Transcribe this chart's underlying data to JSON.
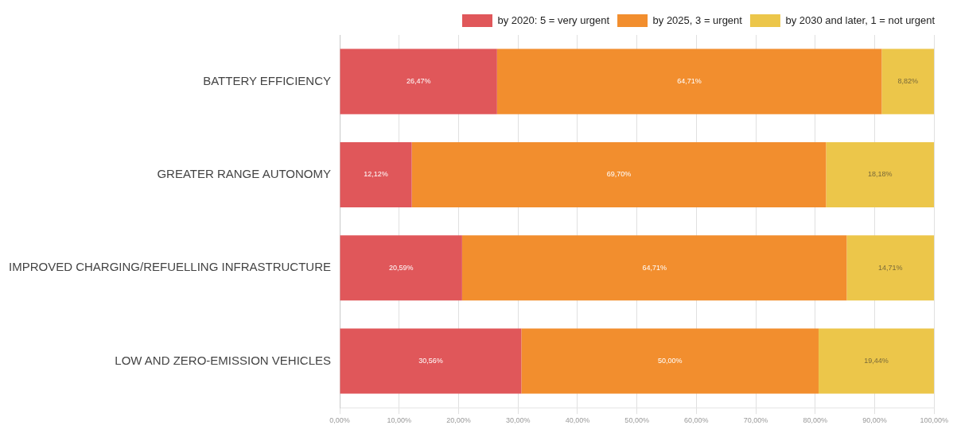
{
  "chart_data": {
    "type": "bar",
    "orientation": "horizontal",
    "stacked": true,
    "categories": [
      "BATTERY EFFICIENCY",
      "GREATER RANGE AUTONOMY",
      "IMPROVED CHARGING/REFUELLING INFRASTRUCTURE",
      "LOW AND ZERO-EMISSION VEHICLES"
    ],
    "series": [
      {
        "name": "by 2020: 5 = very urgent",
        "color": "#e0575a",
        "values": [
          26.47,
          12.12,
          20.59,
          30.56
        ],
        "value_labels": [
          "26,47%",
          "12,12%",
          "20,59%",
          "30,56%"
        ]
      },
      {
        "name": "by 2025, 3 = urgent",
        "color": "#f28e2e",
        "values": [
          64.71,
          69.7,
          64.71,
          50.0
        ],
        "value_labels": [
          "64,71%",
          "69,70%",
          "64,71%",
          "50,00%"
        ]
      },
      {
        "name": "by 2030 and later, 1 = not urgent",
        "color": "#ecc64a",
        "values": [
          8.82,
          18.18,
          14.71,
          19.44
        ],
        "value_labels": [
          "8,82%",
          "18,18%",
          "14,71%",
          "19,44%"
        ]
      }
    ],
    "xlim": [
      0,
      100
    ],
    "xticks": [
      {
        "value": 0,
        "label": "0,00%"
      },
      {
        "value": 10,
        "label": "10,00%"
      },
      {
        "value": 20,
        "label": "20,00%"
      },
      {
        "value": 30,
        "label": "30,00%"
      },
      {
        "value": 40,
        "label": "40,00%"
      },
      {
        "value": 50,
        "label": "50,00%"
      },
      {
        "value": 60,
        "label": "60,00%"
      },
      {
        "value": 70,
        "label": "70,00%"
      },
      {
        "value": 80,
        "label": "80,00%"
      },
      {
        "value": 90,
        "label": "90,00%"
      },
      {
        "value": 100,
        "label": "100,00%"
      }
    ],
    "grid": "x",
    "legend": "top right"
  }
}
